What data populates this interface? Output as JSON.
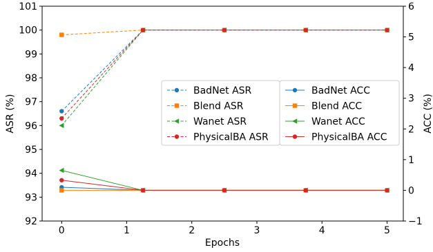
{
  "chart_data": {
    "type": "line",
    "xlabel": "Epochs",
    "ylabel_left": "ASR (%)",
    "ylabel_right": "ACC (%)",
    "xlim": [
      -0.3,
      5.25
    ],
    "ylim_left": [
      92,
      101
    ],
    "ylim_right": [
      -1,
      6
    ],
    "xticks": [
      0,
      1,
      2,
      3,
      4,
      5
    ],
    "xtick_labels": [
      "0",
      "1",
      "2",
      "3",
      "4",
      "5"
    ],
    "yticks_left": [
      92,
      93,
      94,
      95,
      96,
      97,
      98,
      99,
      100,
      101
    ],
    "ytick_labels_left": [
      "92",
      "93",
      "94",
      "95",
      "96",
      "97",
      "98",
      "99",
      "100",
      "101"
    ],
    "yticks_right": [
      -1,
      0,
      1,
      2,
      3,
      4,
      5,
      6
    ],
    "ytick_labels_right": [
      "−1",
      "0",
      "1",
      "2",
      "3",
      "4",
      "5",
      "6"
    ],
    "x": [
      0,
      1.25,
      2.5,
      3.75,
      5
    ],
    "grid": false,
    "legend_left_placement": "center-right",
    "legend_right_placement": "center-right",
    "series": [
      {
        "name": "BadNet ASR",
        "axis": "left",
        "style": "dashed",
        "marker": "circle",
        "color": "#1f77b4",
        "values": [
          96.6,
          100,
          100,
          100,
          100
        ]
      },
      {
        "name": "Blend ASR",
        "axis": "left",
        "style": "dashed",
        "marker": "square",
        "color": "#ff7f0e",
        "values": [
          99.8,
          100,
          100,
          100,
          100
        ]
      },
      {
        "name": "Wanet ASR",
        "axis": "left",
        "style": "dashed",
        "marker": "triangle-left",
        "color": "#2ca02c",
        "values": [
          96.0,
          100,
          100,
          100,
          100
        ]
      },
      {
        "name": "PhysicalBA ASR",
        "axis": "left",
        "style": "dashed",
        "marker": "circle",
        "color": "#d62728",
        "values": [
          96.3,
          100,
          100,
          100,
          100
        ]
      },
      {
        "name": "BadNet ACC",
        "axis": "right",
        "style": "solid",
        "marker": "circle",
        "color": "#1f77b4",
        "values": [
          0.1,
          0,
          0,
          0,
          0
        ]
      },
      {
        "name": "Blend ACC",
        "axis": "right",
        "style": "solid",
        "marker": "square",
        "color": "#ff7f0e",
        "values": [
          0.0,
          0,
          0,
          0,
          0
        ]
      },
      {
        "name": "Wanet ACC",
        "axis": "right",
        "style": "solid",
        "marker": "triangle-left",
        "color": "#2ca02c",
        "values": [
          0.65,
          0,
          0,
          0,
          0
        ]
      },
      {
        "name": "PhysicalBA ACC",
        "axis": "right",
        "style": "solid",
        "marker": "circle",
        "color": "#d62728",
        "values": [
          0.33,
          0,
          0,
          0,
          0
        ]
      }
    ]
  }
}
